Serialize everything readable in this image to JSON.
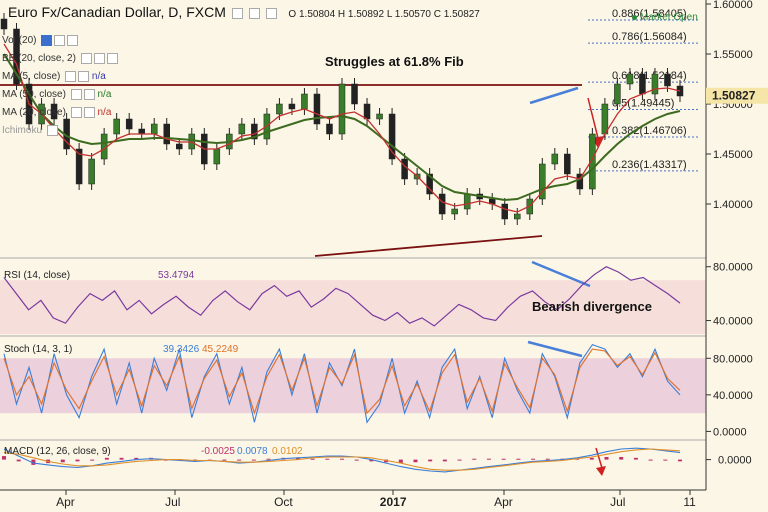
{
  "header": {
    "title": "Euro Fx/Canadian Dollar, D, FXCM",
    "ohlc": "O 1.50804 H 1.50892 L 1.50570 C 1.50827",
    "market_status": "Market Open"
  },
  "indicators": {
    "vol": "Vol (20)",
    "bb": "BB (20, close, 2)",
    "ma5": "MA (5, close)",
    "ma5_value": "n/a",
    "ma50": "MA (50, close)",
    "ma50_value": "n/a",
    "ma20": "MA (20, close)",
    "ma20_value": "n/a",
    "ichimoku": "Ichimoku"
  },
  "annotations": {
    "struggle": "Struggles at 61.8% Fib",
    "divergence": "Bearish divergence"
  },
  "chart_data": [
    {
      "type": "line",
      "panel": "price",
      "title": "Euro Fx/Canadian Dollar, D, FXCM",
      "ylim": [
        1.35,
        1.6
      ],
      "y_ticks": [
        "1.60000",
        "1.55000",
        "1.50000",
        "1.45000",
        "1.40000"
      ],
      "last_price": "1.50827",
      "x_ticks": [
        "Apr",
        "Jul",
        "Oct",
        "2017",
        "Apr",
        "Jul",
        "11"
      ],
      "fib_levels": [
        {
          "label": "0.886(1.58405)",
          "value": 1.58405
        },
        {
          "label": "0.786(1.56084)",
          "value": 1.56084
        },
        {
          "label": "0.618(1.52184)",
          "value": 1.52184
        },
        {
          "label": "0.5(1.49445)",
          "value": 1.49445
        },
        {
          "label": "0.382(1.46706)",
          "value": 1.46706
        },
        {
          "label": "0.236(1.43317)",
          "value": 1.43317
        }
      ],
      "series": [
        {
          "values": [
            1.575,
            1.52,
            1.48,
            1.5,
            1.485,
            1.455,
            1.42,
            1.445,
            1.47,
            1.485,
            1.475,
            1.47,
            1.48,
            1.46,
            1.455,
            1.47,
            1.44,
            1.455,
            1.47,
            1.48,
            1.465,
            1.49,
            1.5,
            1.495,
            1.51,
            1.48,
            1.47,
            1.52,
            1.5,
            1.485,
            1.49,
            1.445,
            1.425,
            1.43,
            1.41,
            1.39,
            1.395,
            1.41,
            1.405,
            1.4,
            1.385,
            1.39,
            1.405,
            1.44,
            1.45,
            1.43,
            1.415,
            1.47,
            1.5,
            1.52,
            1.53,
            1.51,
            1.53,
            1.518,
            1.508
          ]
        },
        {
          "name": "MA (50, close)",
          "values": [
            1.55,
            1.53,
            1.51,
            1.49,
            1.478,
            1.468,
            1.463,
            1.46,
            1.461,
            1.463,
            1.465,
            1.465,
            1.466,
            1.466,
            1.465,
            1.464,
            1.462,
            1.461,
            1.462,
            1.464,
            1.467,
            1.472,
            1.476,
            1.48,
            1.484,
            1.486,
            1.487,
            1.488,
            1.485,
            1.478,
            1.468,
            1.458,
            1.448,
            1.438,
            1.428,
            1.418,
            1.412,
            1.41,
            1.408,
            1.406,
            1.404,
            1.405,
            1.41,
            1.415,
            1.418,
            1.42,
            1.425,
            1.435,
            1.448,
            1.46,
            1.47,
            1.478,
            1.485,
            1.49,
            1.493
          ]
        },
        {
          "name": "MA (20, close)",
          "values": [
            1.56,
            1.54,
            1.5,
            1.49,
            1.475,
            1.462,
            1.45,
            1.448,
            1.455,
            1.465,
            1.47,
            1.47,
            1.47,
            1.465,
            1.462,
            1.462,
            1.455,
            1.455,
            1.46,
            1.468,
            1.47,
            1.478,
            1.488,
            1.492,
            1.495,
            1.49,
            1.485,
            1.49,
            1.492,
            1.485,
            1.47,
            1.452,
            1.438,
            1.428,
            1.415,
            1.402,
            1.398,
            1.4,
            1.403,
            1.4,
            1.395,
            1.392,
            1.398,
            1.412,
            1.425,
            1.428,
            1.425,
            1.445,
            1.47,
            1.49,
            1.505,
            1.51,
            1.515,
            1.516,
            1.513
          ]
        }
      ]
    },
    {
      "type": "line",
      "panel": "rsi",
      "title": "RSI (14, close)",
      "current": "53.4794",
      "ylim": [
        30,
        85
      ],
      "y_ticks": [
        "80.0000",
        "40.0000"
      ],
      "series": [
        {
          "values": [
            72,
            60,
            48,
            55,
            42,
            38,
            50,
            60,
            55,
            62,
            48,
            55,
            45,
            52,
            58,
            50,
            44,
            55,
            62,
            54,
            48,
            60,
            66,
            58,
            62,
            50,
            56,
            64,
            60,
            52,
            44,
            40,
            46,
            38,
            42,
            36,
            44,
            52,
            48,
            42,
            40,
            50,
            58,
            62,
            54,
            48,
            56,
            66,
            74,
            80,
            76,
            70,
            72,
            66,
            60,
            53
          ]
        }
      ]
    },
    {
      "type": "line",
      "panel": "stoch",
      "title": "Stoch (14, 3, 1)",
      "k_value": "39.3426",
      "d_value": "45.2249",
      "ylim": [
        -5,
        100
      ],
      "y_ticks": [
        "80.0000",
        "40.0000",
        "0.0000"
      ],
      "series": [
        {
          "name": "%K",
          "values": [
            85,
            30,
            70,
            20,
            85,
            40,
            15,
            60,
            90,
            30,
            75,
            20,
            80,
            45,
            90,
            15,
            60,
            85,
            30,
            70,
            10,
            65,
            90,
            40,
            85,
            20,
            75,
            50,
            90,
            10,
            30,
            80,
            20,
            55,
            15,
            70,
            90,
            25,
            60,
            15,
            80,
            45,
            20,
            85,
            60,
            15,
            75,
            95,
            90,
            70,
            85,
            60,
            90,
            55,
            40
          ]
        },
        {
          "name": "%D",
          "values": [
            80,
            40,
            60,
            30,
            75,
            45,
            25,
            55,
            82,
            40,
            68,
            28,
            72,
            50,
            82,
            25,
            58,
            78,
            38,
            64,
            20,
            60,
            84,
            45,
            80,
            28,
            70,
            52,
            84,
            20,
            35,
            72,
            28,
            52,
            22,
            64,
            84,
            32,
            58,
            22,
            74,
            48,
            26,
            80,
            62,
            22,
            70,
            90,
            88,
            72,
            82,
            62,
            86,
            58,
            45
          ]
        }
      ]
    },
    {
      "type": "bar",
      "panel": "macd",
      "title": "MACD (12, 26, close, 9)",
      "histogram_value": "-0.0025",
      "macd_value": "0.0078",
      "signal_value": "0.0102",
      "ylim": [
        -0.03,
        0.02
      ],
      "y_ticks": [
        "0.0000"
      ],
      "series": [
        {
          "name": "MACD",
          "values": [
            0.012,
            0.004,
            -0.004,
            -0.006,
            -0.008,
            -0.009,
            -0.007,
            -0.004,
            -0.002,
            0.0,
            0.001,
            0.0,
            -0.001,
            -0.002,
            -0.001,
            -0.002,
            -0.004,
            -0.003,
            -0.001,
            0.001,
            0.002,
            0.003,
            0.004,
            0.004,
            0.003,
            0.0,
            -0.004,
            -0.008,
            -0.011,
            -0.013,
            -0.014,
            -0.012,
            -0.01,
            -0.008,
            -0.006,
            -0.004,
            -0.002,
            -0.001,
            0.0,
            0.002,
            0.005,
            0.009,
            0.012,
            0.013,
            0.012,
            0.01,
            0.008
          ]
        },
        {
          "name": "Signal",
          "values": [
            0.008,
            0.006,
            0.002,
            -0.002,
            -0.005,
            -0.007,
            -0.007,
            -0.006,
            -0.004,
            -0.002,
            -0.001,
            0.0,
            0.0,
            -0.001,
            -0.001,
            -0.002,
            -0.003,
            -0.003,
            -0.002,
            -0.001,
            0.0,
            0.002,
            0.003,
            0.003,
            0.003,
            0.002,
            -0.001,
            -0.004,
            -0.008,
            -0.011,
            -0.012,
            -0.012,
            -0.011,
            -0.009,
            -0.007,
            -0.005,
            -0.003,
            -0.002,
            -0.001,
            0.001,
            0.003,
            0.006,
            0.009,
            0.011,
            0.012,
            0.011,
            0.01
          ]
        }
      ]
    }
  ]
}
